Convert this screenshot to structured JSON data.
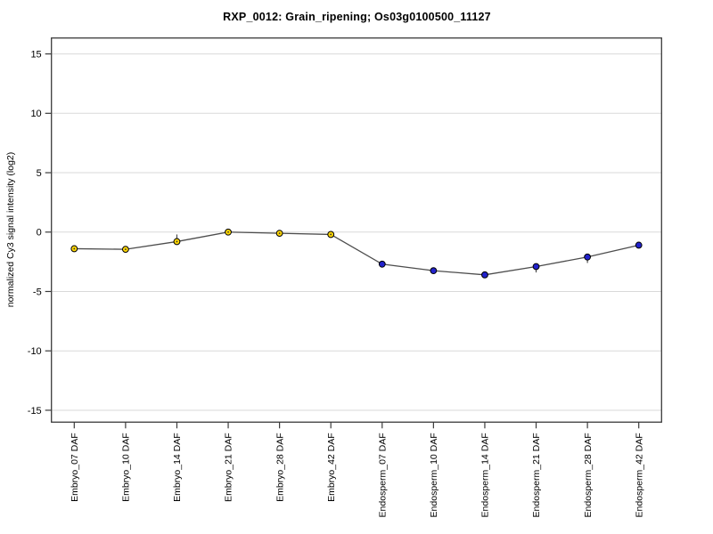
{
  "figure": {
    "title": "RXP_0012: Grain_ripening; Os03g0100500_11127",
    "ylabel": "normalized Cy3 signal intensity (log2)"
  },
  "chart_data": {
    "type": "line",
    "title": "RXP_0012: Grain_ripening; Os03g0100500_11127",
    "xlabel": "",
    "ylabel": "normalized Cy3 signal intensity (log2)",
    "categories": [
      "Embryo_07 DAF",
      "Embryo_10 DAF",
      "Embryo_14 DAF",
      "Embryo_21 DAF",
      "Embryo_28 DAF",
      "Embryo_42 DAF",
      "Endosperm_07 DAF",
      "Endosperm_10 DAF",
      "Endosperm_14 DAF",
      "Endosperm_21 DAF",
      "Endosperm_28 DAF",
      "Endosperm_42 DAF"
    ],
    "values": [
      -1.4,
      -1.45,
      -0.8,
      0.0,
      -0.1,
      -0.2,
      -2.7,
      -3.25,
      -3.6,
      -2.9,
      -2.1,
      -1.1
    ],
    "error_up": [
      0,
      0,
      0.6,
      0,
      0,
      0,
      0,
      0.2,
      0,
      0,
      0.1,
      0
    ],
    "error_down": [
      0,
      0,
      0,
      0,
      0,
      0,
      0,
      0.2,
      0,
      0.5,
      0.5,
      0
    ],
    "groups": [
      {
        "name": "Embryo",
        "color": "#FFD700",
        "first_index": 0,
        "last_index": 5
      },
      {
        "name": "Endosperm",
        "color": "#2222CC",
        "first_index": 6,
        "last_index": 11
      }
    ],
    "yticks": [
      15,
      10,
      5,
      0,
      -5,
      -10,
      -15
    ],
    "ylim": [
      -16.0,
      16.34
    ],
    "grid": true,
    "legend": "none",
    "colors": {
      "line": "#4d4d4d",
      "grid": "#d9d9d9",
      "axis": "#3a3a3a",
      "point_stroke": "#000000",
      "gold_center_dot": "#333333"
    }
  }
}
